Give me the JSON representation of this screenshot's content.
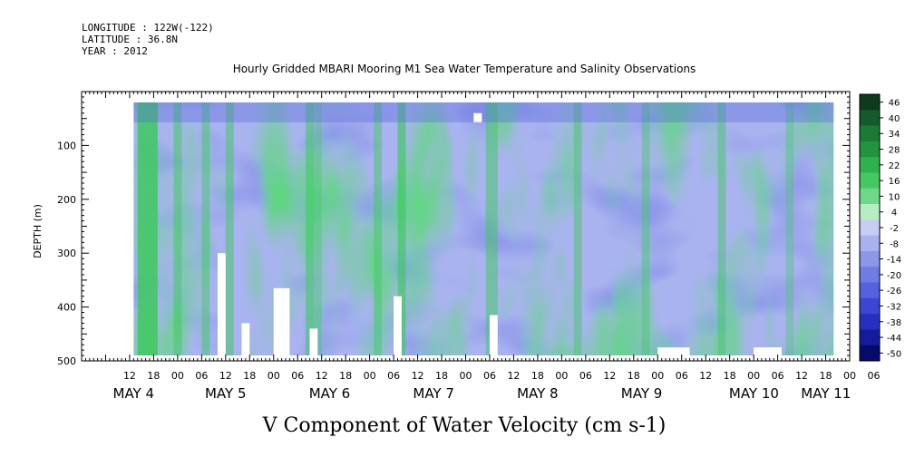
{
  "header": {
    "longitude": "LONGITUDE : 122W(-122)",
    "latitude": "LATITUDE : 36.8N",
    "year": "YEAR : 2012"
  },
  "chart_data": {
    "type": "heatmap",
    "title": "Hourly Gridded MBARI Mooring M1 Sea Water Temperature and Salinity Observations",
    "xlabel": "V Component of Water Velocity (cm s-1)",
    "ylabel": "DEPTH (m)",
    "ylim": [
      500,
      0
    ],
    "y_ticks": [
      100,
      200,
      300,
      400,
      500
    ],
    "x_hour_ticks": [
      "12",
      "18",
      "00",
      "06",
      "12",
      "18",
      "00",
      "06",
      "12",
      "18",
      "00",
      "06",
      "12",
      "18",
      "00",
      "06",
      "12",
      "18",
      "00",
      "06",
      "12",
      "18",
      "00",
      "06",
      "12",
      "18",
      "00",
      "06",
      "12",
      "18",
      "00",
      "06"
    ],
    "day_labels": [
      "MAY  4",
      "MAY  5",
      "MAY  6",
      "MAY  7",
      "MAY  8",
      "MAY  9",
      "MAY 10",
      "MAY 11"
    ],
    "colorbar": {
      "labels": [
        "46",
        "40",
        "34",
        "28",
        "22",
        "16",
        "10",
        "4",
        "-2",
        "-8",
        "-14",
        "-20",
        "-26",
        "-32",
        "-38",
        "-44",
        "-50"
      ],
      "colors": [
        "#0d3b1c",
        "#145a2a",
        "#1b7a36",
        "#22933f",
        "#2fb24d",
        "#45c862",
        "#6fd888",
        "#b6edc2",
        "#c7cdf4",
        "#a9b1f0",
        "#8d97ea",
        "#6f7ce4",
        "#5562dd",
        "#3b47d3",
        "#2630bf",
        "#141c9a",
        "#050a6b"
      ]
    },
    "data_extent": {
      "x_start_hour": 13,
      "x_end_hour": 188,
      "depth_top": 20,
      "depth_bottom": 490
    }
  }
}
